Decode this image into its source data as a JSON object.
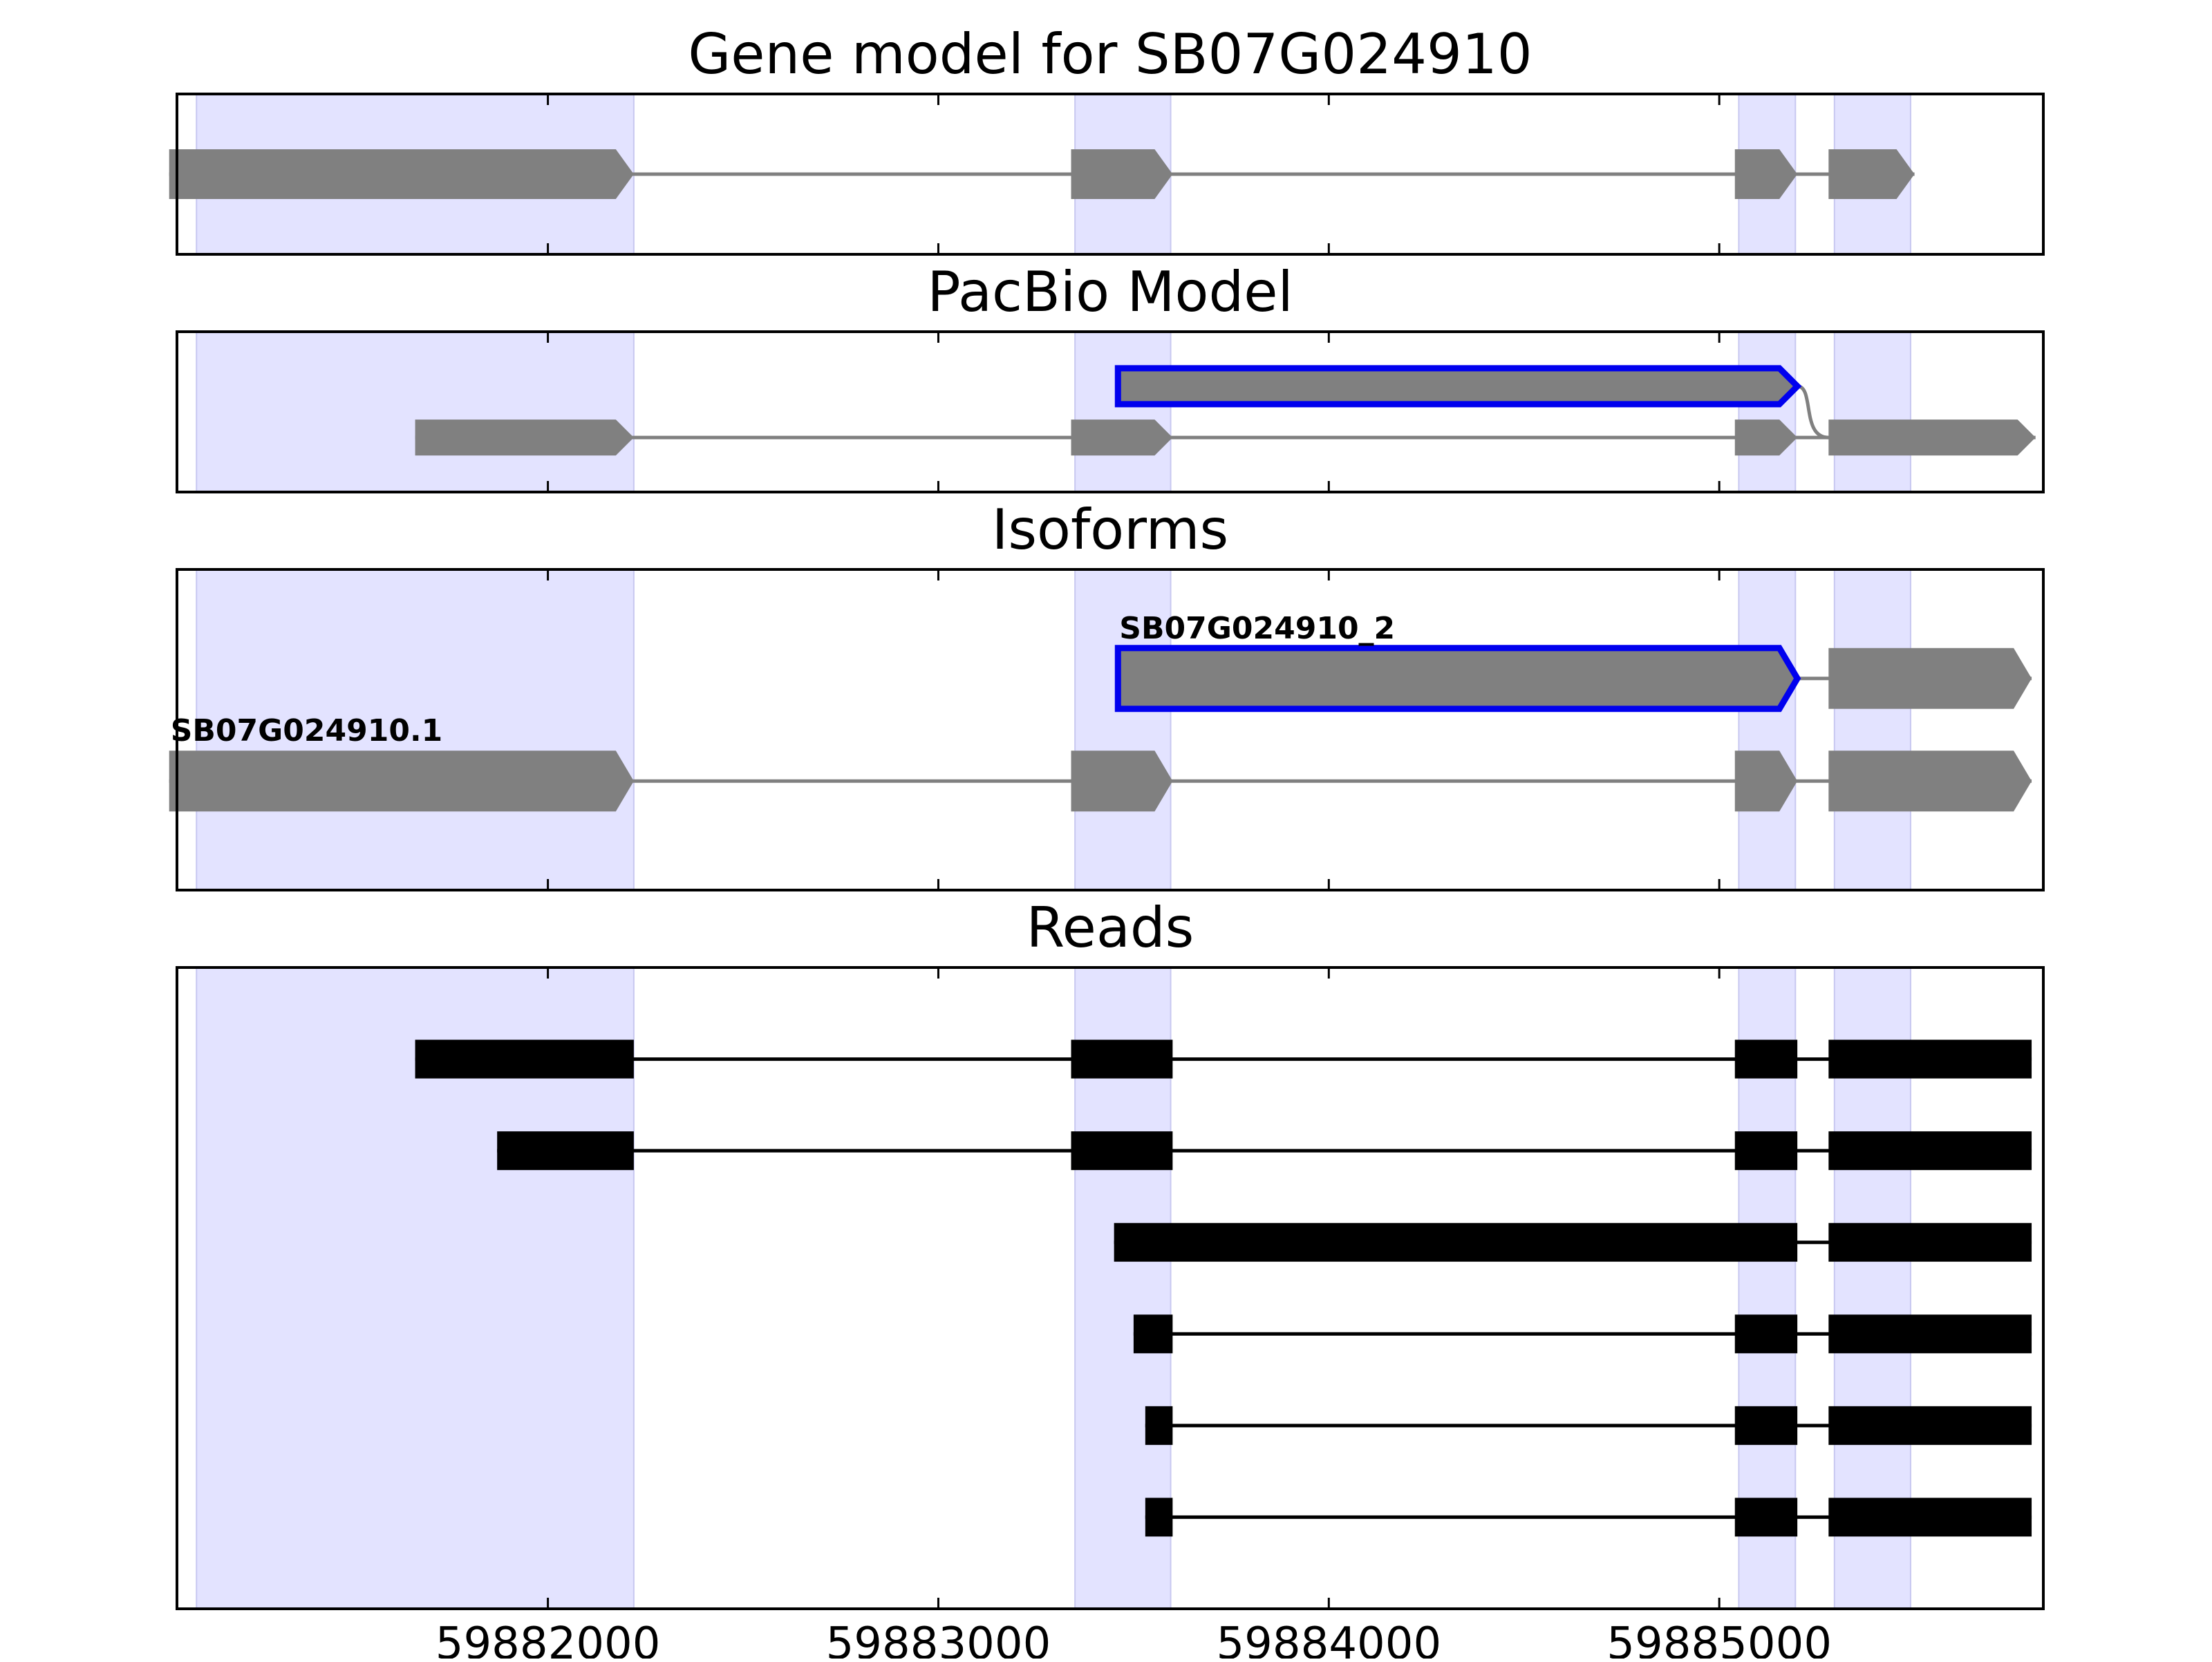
{
  "figure": {
    "x_axis": {
      "ticks": [
        59882000,
        59883000,
        59884000,
        59885000
      ],
      "tick_labels": [
        "59882000",
        "59883000",
        "59884000",
        "59885000"
      ]
    },
    "highlight_regions": [
      [
        59881100,
        59882220
      ],
      [
        59883350,
        59883595
      ],
      [
        59885050,
        59885195
      ],
      [
        59885295,
        59885490
      ]
    ],
    "colors": {
      "highlight": "#e3e3ff",
      "highlight_edge": "#c8c8f0",
      "feature": "#808080",
      "selected_outline": "#0000ee",
      "read": "#000000",
      "axis": "#000000"
    },
    "panels": [
      {
        "id": "gene-model",
        "title": "Gene model for SB07G024910",
        "tracks": [
          {
            "label": "",
            "style": "gene",
            "row": 1,
            "exons": [
              [
                59881030,
                59882220
              ],
              [
                59883340,
                59883600
              ],
              [
                59885040,
                59885200
              ],
              [
                59885280,
                59885500
              ]
            ]
          }
        ]
      },
      {
        "id": "pacbio-model",
        "title": "PacBio Model",
        "tracks": [
          {
            "label": "",
            "style": "selected",
            "row": 1,
            "exons": [
              [
                59883460,
                59885200
              ]
            ]
          },
          {
            "label": "",
            "style": "gene",
            "row": 0,
            "exons": [
              [
                59881660,
                59882220
              ],
              [
                59883340,
                59883600
              ],
              [
                59885040,
                59885200
              ],
              [
                59885280,
                59885810
              ]
            ]
          }
        ],
        "connectors": [
          {
            "from_row": 1,
            "to_row": 0,
            "from": 59885200,
            "to": 59885280
          }
        ]
      },
      {
        "id": "isoforms",
        "title": "Isoforms",
        "tracks": [
          {
            "label": "SB07G024910_2",
            "style": "selected",
            "row": 1,
            "exons": [
              [
                59883460,
                59885200
              ],
              [
                59885280,
                59885800
              ]
            ]
          },
          {
            "label": "SB07G024910.1",
            "style": "gene",
            "row": 0,
            "exons": [
              [
                59881030,
                59882220
              ],
              [
                59883340,
                59883600
              ],
              [
                59885040,
                59885200
              ],
              [
                59885280,
                59885800
              ]
            ]
          }
        ]
      },
      {
        "id": "reads",
        "title": "Reads",
        "tracks": [
          {
            "label": "",
            "style": "read",
            "row": 5,
            "exons": [
              [
                59881660,
                59882220
              ],
              [
                59883340,
                59883600
              ],
              [
                59885040,
                59885200
              ],
              [
                59885280,
                59885800
              ]
            ]
          },
          {
            "label": "",
            "style": "read",
            "row": 4,
            "exons": [
              [
                59881870,
                59882220
              ],
              [
                59883340,
                59883600
              ],
              [
                59885040,
                59885200
              ],
              [
                59885280,
                59885800
              ]
            ]
          },
          {
            "label": "",
            "style": "read",
            "row": 3,
            "exons": [
              [
                59883450,
                59885200
              ],
              [
                59885280,
                59885800
              ]
            ]
          },
          {
            "label": "",
            "style": "read",
            "row": 2,
            "exons": [
              [
                59883500,
                59883600
              ],
              [
                59885040,
                59885200
              ],
              [
                59885280,
                59885800
              ]
            ]
          },
          {
            "label": "",
            "style": "read",
            "row": 1,
            "exons": [
              [
                59883530,
                59883600
              ],
              [
                59885040,
                59885200
              ],
              [
                59885280,
                59885800
              ]
            ]
          },
          {
            "label": "",
            "style": "read",
            "row": 0,
            "exons": [
              [
                59883530,
                59883600
              ],
              [
                59885040,
                59885200
              ],
              [
                59885280,
                59885800
              ]
            ]
          }
        ]
      }
    ]
  }
}
